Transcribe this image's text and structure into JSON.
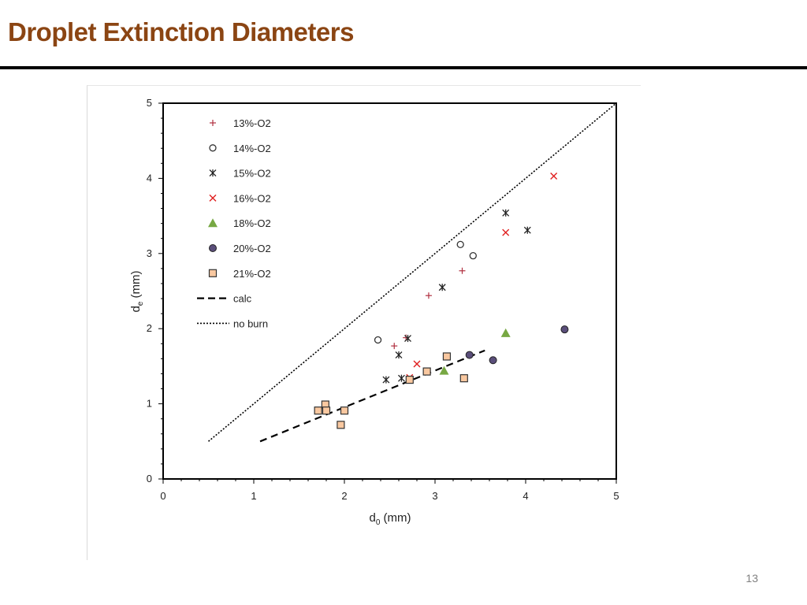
{
  "slide": {
    "title": "Droplet Extinction Diameters",
    "page_number": "13"
  },
  "colors": {
    "title": "#8B4513",
    "s13": "#b03040",
    "s14": "#333333",
    "s15": "#222222",
    "s16": "#e02020",
    "s18": "#77a843",
    "s20_fill": "#5a4e7a",
    "s21_fill": "#f9c8a0",
    "s21_edge": "#333333"
  },
  "chart_data": {
    "type": "scatter",
    "xlabel_main": "d",
    "xlabel_sub": "0",
    "xlabel_unit": " (mm)",
    "ylabel_main": "d",
    "ylabel_sub": "e",
    "ylabel_unit": " (mm)",
    "xlim": [
      0,
      5
    ],
    "ylim": [
      0,
      5
    ],
    "x_ticks": [
      "0",
      "1",
      "2",
      "3",
      "4",
      "5"
    ],
    "y_ticks": [
      "0",
      "1",
      "2",
      "3",
      "4",
      "5"
    ],
    "legend_position": "top-left",
    "series": [
      {
        "name": "13%-O2",
        "marker": "plus",
        "points": [
          [
            2.55,
            1.77
          ],
          [
            2.68,
            1.88
          ],
          [
            2.93,
            2.44
          ],
          [
            3.3,
            2.77
          ]
        ]
      },
      {
        "name": "14%-O2",
        "marker": "circle-open",
        "points": [
          [
            2.37,
            1.85
          ],
          [
            3.28,
            3.12
          ],
          [
            3.42,
            2.97
          ]
        ]
      },
      {
        "name": "15%-O2",
        "marker": "asterisk",
        "points": [
          [
            2.46,
            1.32
          ],
          [
            2.6,
            1.65
          ],
          [
            2.63,
            1.34
          ],
          [
            2.7,
            1.87
          ],
          [
            3.08,
            2.55
          ],
          [
            3.78,
            3.54
          ],
          [
            4.02,
            3.31
          ]
        ]
      },
      {
        "name": "16%-O2",
        "marker": "x",
        "points": [
          [
            2.72,
            1.35
          ],
          [
            2.8,
            1.53
          ],
          [
            3.78,
            3.28
          ],
          [
            4.31,
            4.03
          ]
        ]
      },
      {
        "name": "18%-O2",
        "marker": "triangle",
        "points": [
          [
            3.1,
            1.44
          ],
          [
            3.78,
            1.94
          ]
        ]
      },
      {
        "name": "20%-O2",
        "marker": "circle-filled",
        "points": [
          [
            3.38,
            1.65
          ],
          [
            3.64,
            1.58
          ],
          [
            4.43,
            1.99
          ]
        ]
      },
      {
        "name": "21%-O2",
        "marker": "square",
        "points": [
          [
            1.71,
            0.91
          ],
          [
            1.79,
            0.99
          ],
          [
            1.8,
            0.91
          ],
          [
            1.96,
            0.72
          ],
          [
            2.0,
            0.91
          ],
          [
            2.72,
            1.32
          ],
          [
            2.91,
            1.43
          ],
          [
            3.13,
            1.63
          ],
          [
            3.32,
            1.34
          ]
        ]
      },
      {
        "name": "calc",
        "marker": "dashed-line",
        "points": [
          [
            1.07,
            0.5
          ],
          [
            3.55,
            1.71
          ]
        ]
      },
      {
        "name": "no burn",
        "marker": "dotted-line",
        "points": [
          [
            0.5,
            0.5
          ],
          [
            5.0,
            5.0
          ]
        ]
      }
    ]
  }
}
